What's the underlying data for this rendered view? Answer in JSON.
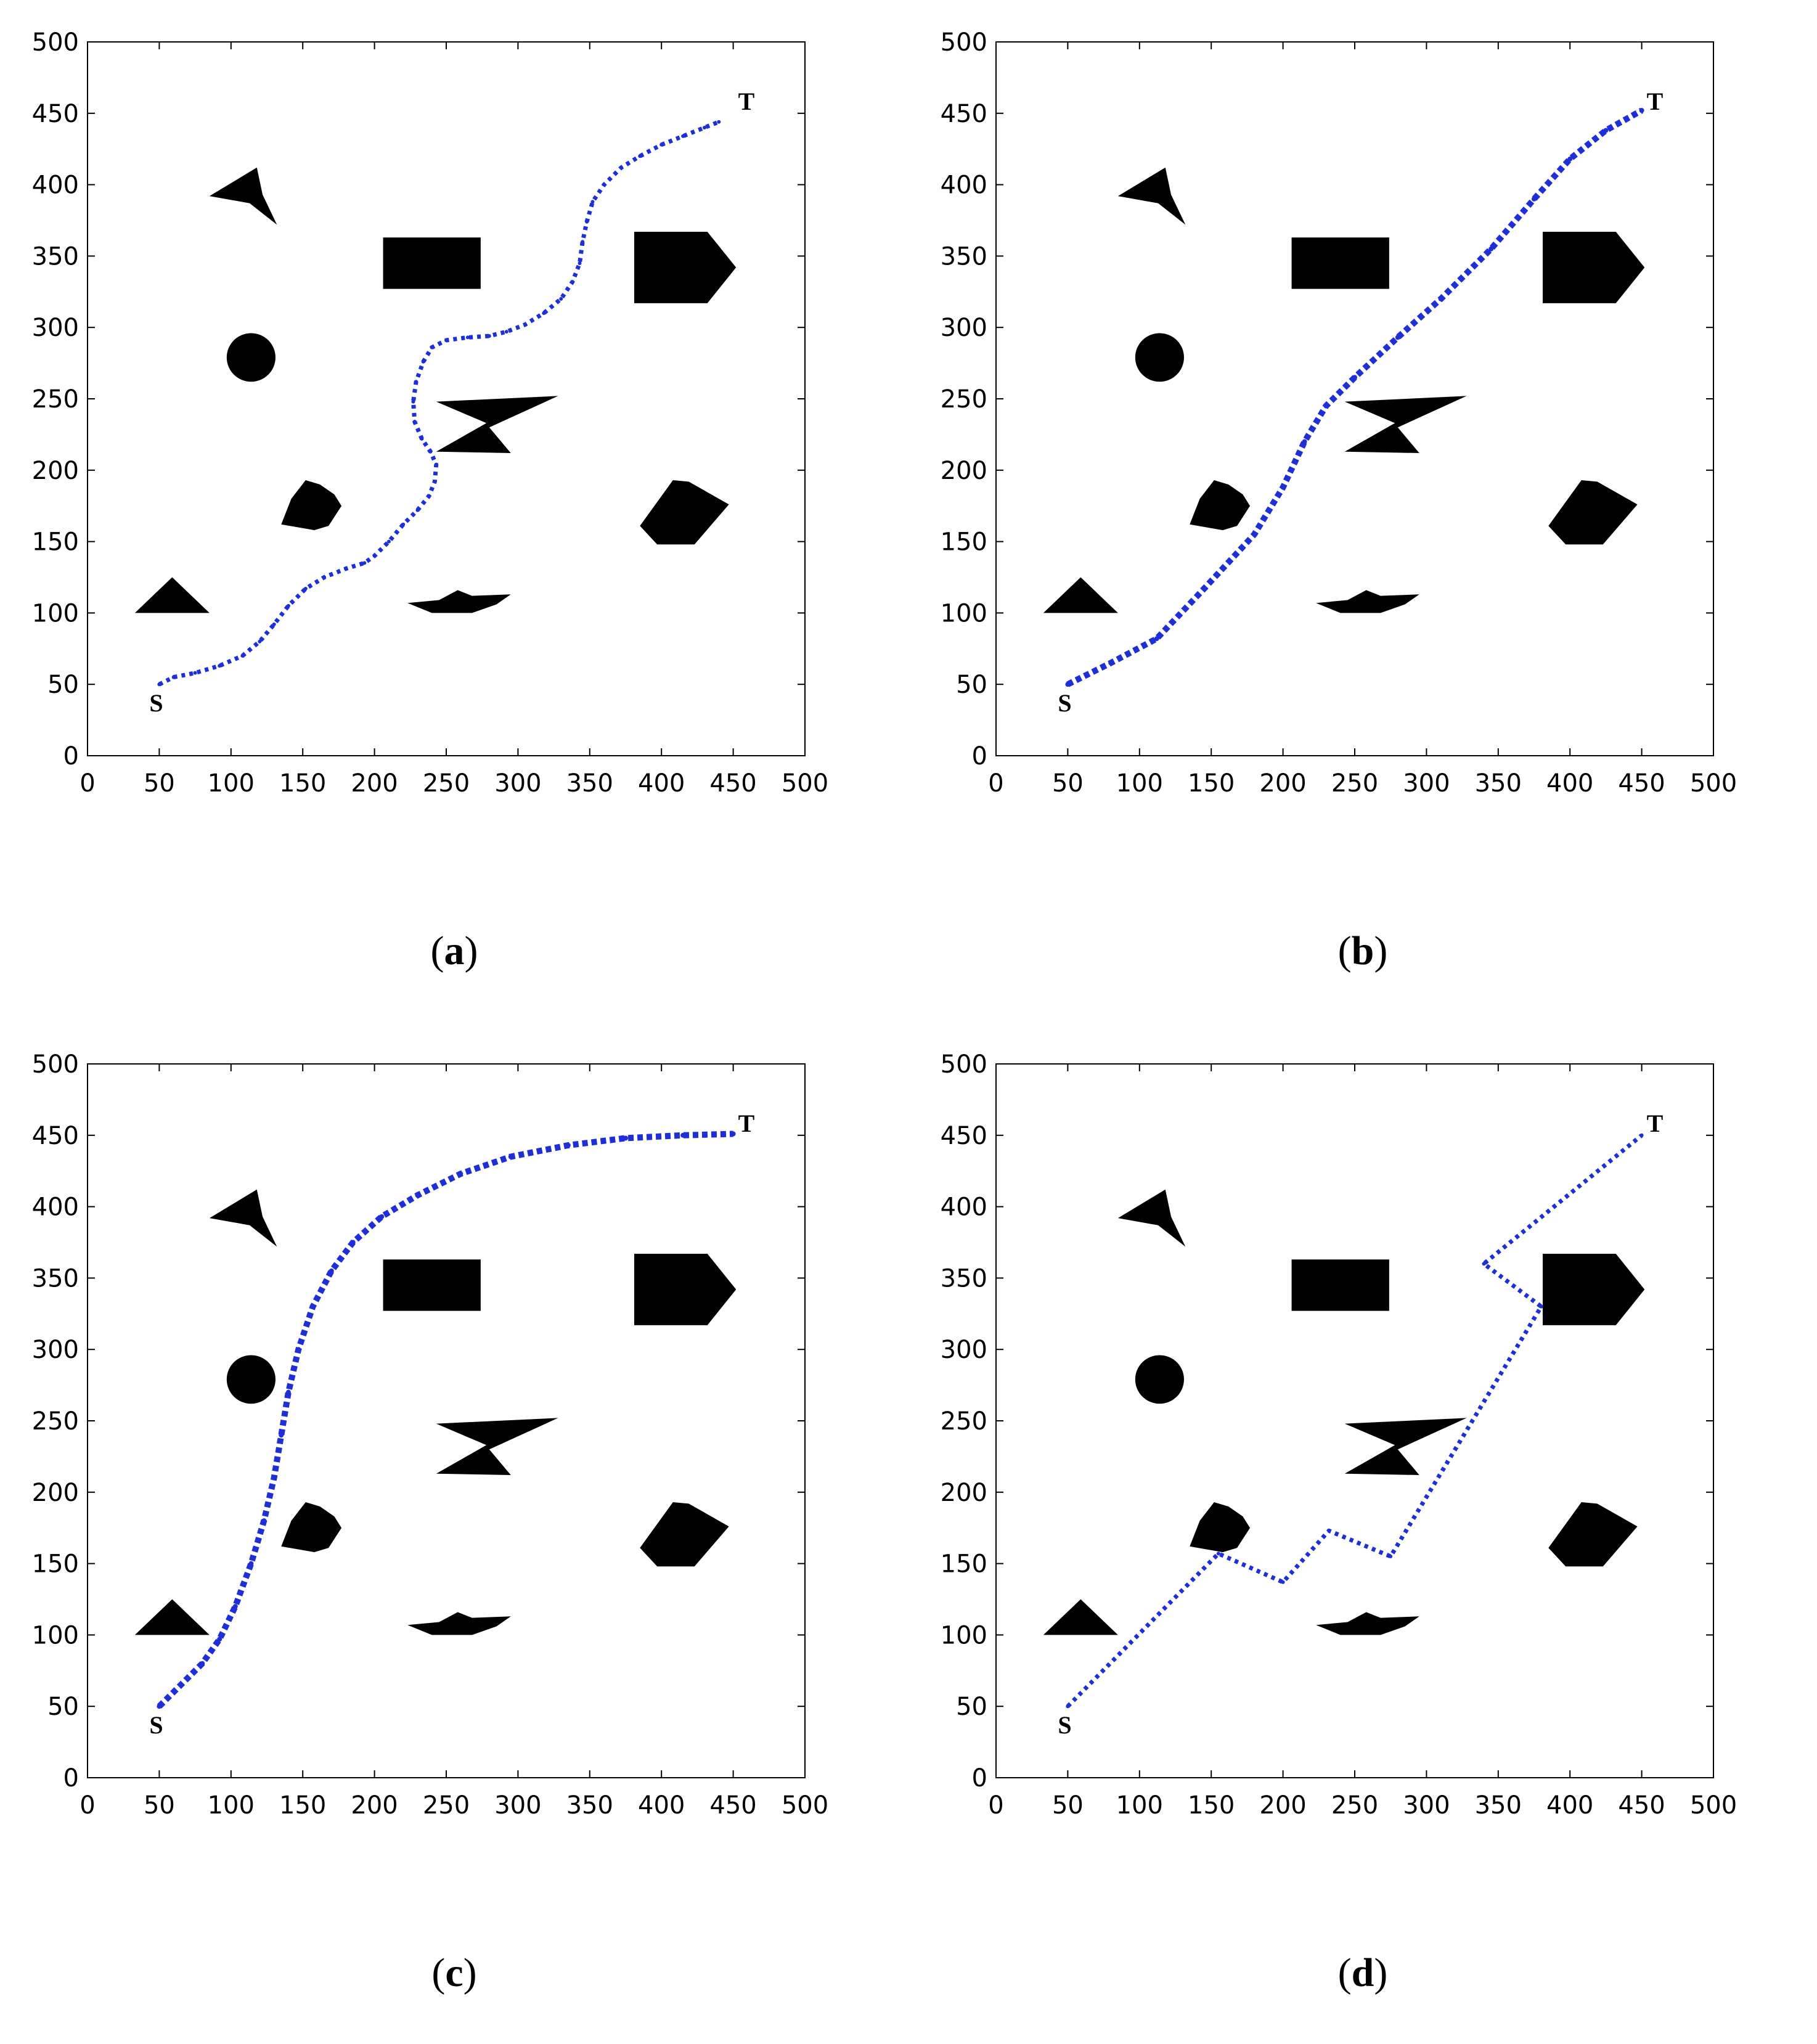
{
  "chart_data": [
    {
      "type": "scatter",
      "caption": "a",
      "xlim": [
        0,
        500
      ],
      "ylim": [
        0,
        500
      ],
      "xticks": [
        0,
        50,
        100,
        150,
        200,
        250,
        300,
        350,
        400,
        450,
        500
      ],
      "yticks": [
        0,
        50,
        100,
        150,
        200,
        250,
        300,
        350,
        400,
        450,
        500
      ],
      "start": {
        "label": "S",
        "x": 50,
        "y": 50
      },
      "target": {
        "label": "T",
        "x": 450,
        "y": 450
      },
      "path_style": "dotted-thin",
      "path": [
        [
          50,
          50
        ],
        [
          60,
          55
        ],
        [
          75,
          58
        ],
        [
          92,
          63
        ],
        [
          108,
          70
        ],
        [
          120,
          80
        ],
        [
          130,
          92
        ],
        [
          140,
          105
        ],
        [
          152,
          117
        ],
        [
          165,
          125
        ],
        [
          180,
          131
        ],
        [
          193,
          135
        ],
        [
          200,
          140
        ],
        [
          210,
          150
        ],
        [
          220,
          162
        ],
        [
          230,
          172
        ],
        [
          238,
          182
        ],
        [
          242,
          192
        ],
        [
          243,
          204
        ],
        [
          239,
          213
        ],
        [
          233,
          222
        ],
        [
          228,
          234
        ],
        [
          227,
          248
        ],
        [
          229,
          262
        ],
        [
          234,
          276
        ],
        [
          240,
          286
        ],
        [
          250,
          291
        ],
        [
          265,
          293
        ],
        [
          280,
          294
        ],
        [
          292,
          297
        ],
        [
          305,
          302
        ],
        [
          318,
          310
        ],
        [
          330,
          320
        ],
        [
          338,
          332
        ],
        [
          343,
          345
        ],
        [
          345,
          360
        ],
        [
          348,
          374
        ],
        [
          352,
          388
        ],
        [
          360,
          400
        ],
        [
          372,
          412
        ],
        [
          385,
          420
        ],
        [
          400,
          428
        ],
        [
          415,
          434
        ],
        [
          430,
          440
        ],
        [
          440,
          444
        ]
      ],
      "color": "#1f2fd6"
    },
    {
      "type": "scatter",
      "caption": "b",
      "xlim": [
        0,
        500
      ],
      "ylim": [
        0,
        500
      ],
      "xticks": [
        0,
        50,
        100,
        150,
        200,
        250,
        300,
        350,
        400,
        450,
        500
      ],
      "yticks": [
        0,
        50,
        100,
        150,
        200,
        250,
        300,
        350,
        400,
        450,
        500
      ],
      "start": {
        "label": "S",
        "x": 50,
        "y": 50
      },
      "target": {
        "label": "T",
        "x": 450,
        "y": 450
      },
      "path_style": "dotted-thick",
      "path": [
        [
          50,
          50
        ],
        [
          80,
          65
        ],
        [
          112,
          82
        ],
        [
          145,
          117
        ],
        [
          180,
          155
        ],
        [
          200,
          188
        ],
        [
          215,
          220
        ],
        [
          230,
          245
        ],
        [
          250,
          265
        ],
        [
          280,
          293
        ],
        [
          310,
          320
        ],
        [
          345,
          355
        ],
        [
          375,
          390
        ],
        [
          400,
          418
        ],
        [
          425,
          438
        ],
        [
          450,
          452
        ]
      ],
      "color": "#1f2fd6"
    },
    {
      "type": "scatter",
      "caption": "c",
      "xlim": [
        0,
        500
      ],
      "ylim": [
        0,
        500
      ],
      "xticks": [
        0,
        50,
        100,
        150,
        200,
        250,
        300,
        350,
        400,
        450,
        500
      ],
      "yticks": [
        0,
        50,
        100,
        150,
        200,
        250,
        300,
        350,
        400,
        450,
        500
      ],
      "start": {
        "label": "S",
        "x": 50,
        "y": 50
      },
      "target": {
        "label": "T",
        "x": 450,
        "y": 450
      },
      "path_style": "dotted-thick",
      "path": [
        [
          50,
          50
        ],
        [
          65,
          65
        ],
        [
          80,
          80
        ],
        [
          92,
          97
        ],
        [
          103,
          120
        ],
        [
          114,
          150
        ],
        [
          123,
          180
        ],
        [
          130,
          210
        ],
        [
          135,
          240
        ],
        [
          140,
          270
        ],
        [
          147,
          300
        ],
        [
          157,
          330
        ],
        [
          170,
          355
        ],
        [
          185,
          375
        ],
        [
          205,
          393
        ],
        [
          230,
          408
        ],
        [
          260,
          423
        ],
        [
          295,
          435
        ],
        [
          335,
          443
        ],
        [
          375,
          448
        ],
        [
          415,
          450
        ],
        [
          450,
          451
        ]
      ],
      "color": "#1f2fd6"
    },
    {
      "type": "scatter",
      "caption": "d",
      "xlim": [
        0,
        500
      ],
      "ylim": [
        0,
        500
      ],
      "xticks": [
        0,
        50,
        100,
        150,
        200,
        250,
        300,
        350,
        400,
        450,
        500
      ],
      "yticks": [
        0,
        50,
        100,
        150,
        200,
        250,
        300,
        350,
        400,
        450,
        500
      ],
      "start": {
        "label": "S",
        "x": 50,
        "y": 50
      },
      "target": {
        "label": "T",
        "x": 450,
        "y": 450
      },
      "path_style": "dotted-thin",
      "path": [
        [
          50,
          50
        ],
        [
          155,
          157
        ],
        [
          200,
          137
        ],
        [
          232,
          173
        ],
        [
          275,
          155
        ],
        [
          380,
          330
        ],
        [
          340,
          360
        ],
        [
          450,
          450
        ]
      ],
      "color": "#1f2fd6"
    }
  ],
  "obstacles": [
    {
      "name": "arrowhead",
      "points": [
        [
          85,
          392
        ],
        [
          118,
          412
        ],
        [
          122,
          393
        ],
        [
          132,
          372
        ],
        [
          113,
          387
        ]
      ]
    },
    {
      "name": "rectangle",
      "points": [
        [
          206,
          327
        ],
        [
          274,
          327
        ],
        [
          274,
          363
        ],
        [
          206,
          363
        ]
      ]
    },
    {
      "name": "pentagon-arrow",
      "points": [
        [
          381,
          317
        ],
        [
          432,
          317
        ],
        [
          452,
          342
        ],
        [
          432,
          367
        ],
        [
          381,
          367
        ]
      ]
    },
    {
      "name": "circle",
      "cx": 114,
      "cy": 279,
      "r": 17
    },
    {
      "name": "hourglass",
      "points": [
        [
          243,
          248
        ],
        [
          328,
          252
        ],
        [
          280,
          230
        ],
        [
          295,
          212
        ],
        [
          243,
          213
        ],
        [
          278,
          233
        ]
      ]
    },
    {
      "name": "rounded-blob",
      "points": [
        [
          135,
          162
        ],
        [
          142,
          180
        ],
        [
          152,
          193
        ],
        [
          162,
          190
        ],
        [
          172,
          183
        ],
        [
          177,
          175
        ],
        [
          168,
          161
        ],
        [
          158,
          158
        ]
      ]
    },
    {
      "name": "pentagon",
      "points": [
        [
          385,
          161
        ],
        [
          397,
          148
        ],
        [
          423,
          148
        ],
        [
          447,
          176
        ],
        [
          419,
          192
        ],
        [
          408,
          193
        ]
      ]
    },
    {
      "name": "triangle",
      "points": [
        [
          33,
          100
        ],
        [
          85,
          100
        ],
        [
          59,
          125
        ]
      ]
    },
    {
      "name": "lens",
      "points": [
        [
          223,
          107
        ],
        [
          245,
          109
        ],
        [
          258,
          116
        ],
        [
          268,
          112
        ],
        [
          295,
          113
        ],
        [
          285,
          106
        ],
        [
          268,
          100
        ],
        [
          240,
          100
        ]
      ]
    }
  ]
}
